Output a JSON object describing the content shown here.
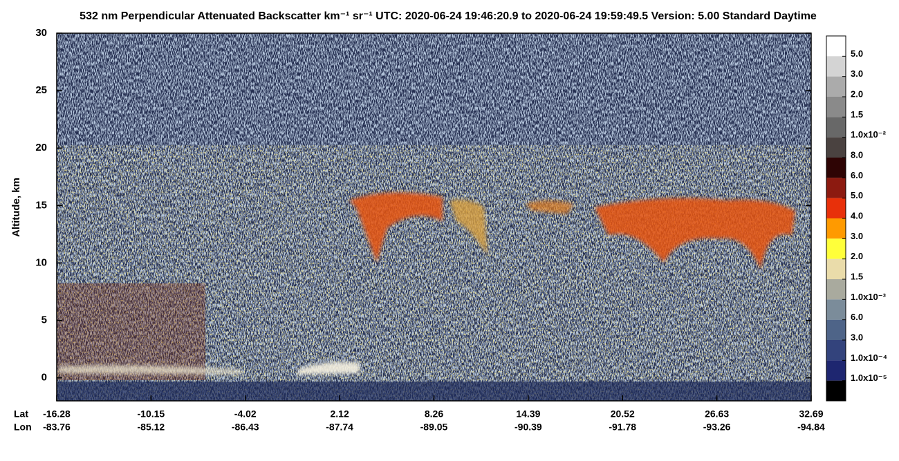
{
  "chart_data": {
    "type": "curtain",
    "title": "532 nm Perpendicular Attenuated Backscatter km⁻¹ sr⁻¹  UTC: 2020-06-24 19:46:20.9 to 2020-06-24 19:59:49.5  Version: 5.00 Standard Daytime",
    "y_label": "Altitude, km",
    "ylim": [
      -2,
      30
    ],
    "yticks": [
      0,
      5,
      10,
      15,
      20,
      25,
      30
    ],
    "x_rows": [
      {
        "name": "Lat",
        "labels": [
          "-16.28",
          "-10.15",
          "-4.02",
          "2.12",
          "8.26",
          "14.39",
          "20.52",
          "26.63",
          "32.69"
        ]
      },
      {
        "name": "Lon",
        "labels": [
          "-83.76",
          "-85.12",
          "-86.43",
          "-87.74",
          "-89.05",
          "-90.39",
          "-91.78",
          "-93.26",
          "-94.84"
        ]
      }
    ],
    "colorbar": {
      "colors": [
        "#ffffff",
        "#d4d4d4",
        "#ababab",
        "#8a8a8a",
        "#686868",
        "#4a4240",
        "#2e0404",
        "#8c1a10",
        "#e8300a",
        "#ff9a00",
        "#ffff3a",
        "#eadcaa",
        "#a9aa9e",
        "#7b8c9a",
        "#4e6488",
        "#33437c",
        "#1e2670",
        "#000000"
      ],
      "labels": [
        "5.0",
        "3.0",
        "2.0",
        "1.5",
        "1.0x10⁻²",
        "8.0",
        "6.0",
        "5.0",
        "4.0",
        "3.0",
        "2.0",
        "1.5",
        "1.0x10⁻³",
        "6.0",
        "3.0",
        "1.0x10⁻⁴",
        "1.0x10⁻⁵"
      ]
    }
  }
}
